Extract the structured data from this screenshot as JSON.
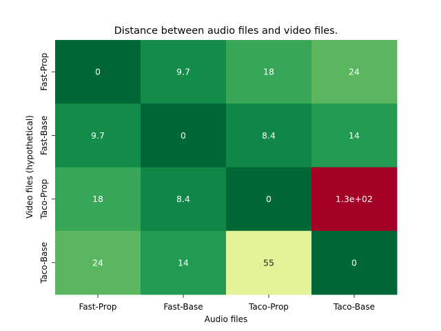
{
  "chart_data": {
    "type": "heatmap",
    "title": "Distance between audio files and video files.",
    "xlabel": "Audio files",
    "ylabel": "Video files (hypothetical)",
    "x_categories": [
      "Fast-Prop",
      "Fast-Base",
      "Taco-Prop",
      "Taco-Base"
    ],
    "y_categories": [
      "Fast-Prop",
      "Fast-Base",
      "Taco-Prop",
      "Taco-Base"
    ],
    "values": [
      [
        0,
        9.7,
        18,
        24
      ],
      [
        9.7,
        0,
        8.4,
        14
      ],
      [
        18,
        8.4,
        0,
        130
      ],
      [
        24,
        14,
        55,
        0
      ]
    ],
    "cell_labels": [
      [
        "0",
        "9.7",
        "18",
        "24"
      ],
      [
        "9.7",
        "0",
        "8.4",
        "14"
      ],
      [
        "18",
        "8.4",
        "0",
        "1.3e+02"
      ],
      [
        "24",
        "14",
        "55",
        "0"
      ]
    ],
    "colormap": "RdYlGn_r",
    "colorbar": false
  }
}
